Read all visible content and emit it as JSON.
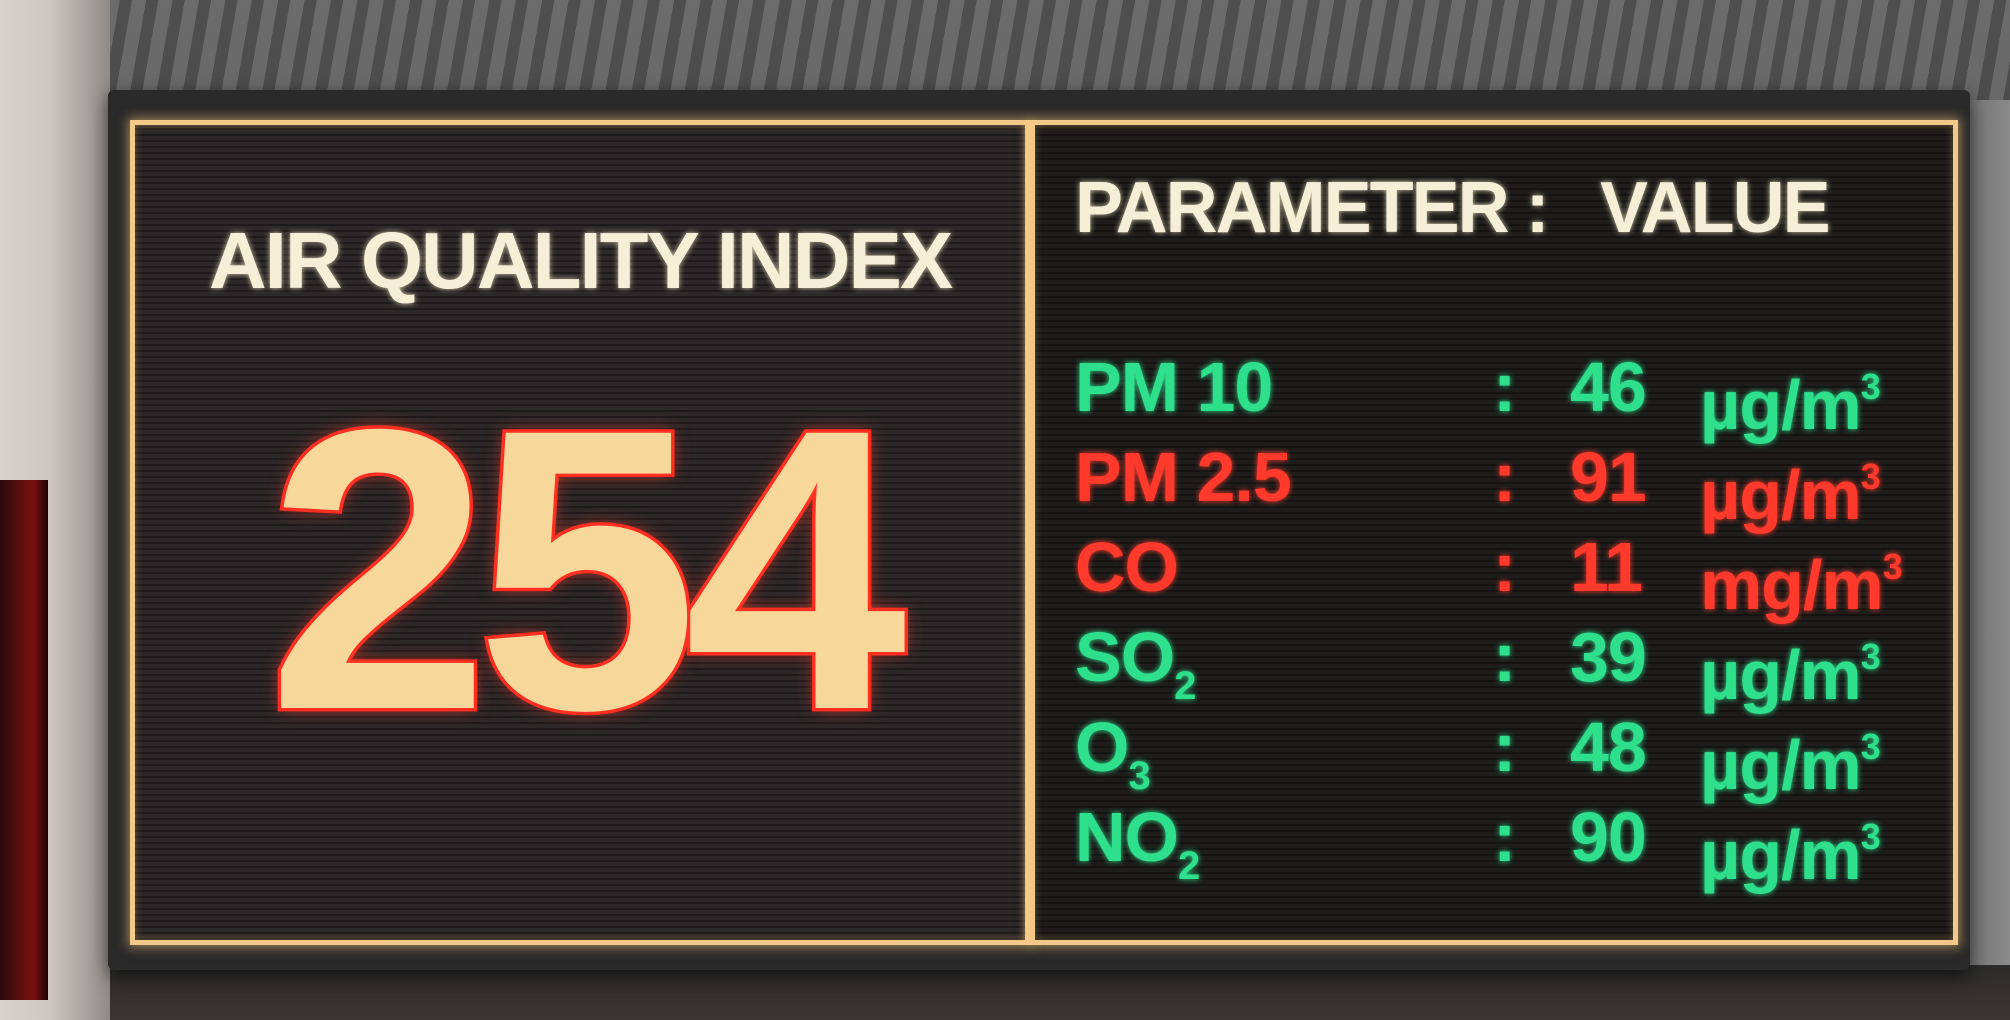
{
  "left_panel": {
    "title": "AIR QUALITY INDEX",
    "value": "254"
  },
  "right_panel": {
    "header_parameter": "PARAMETER :",
    "header_value": "VALUE",
    "rows": [
      {
        "name": "PM 10",
        "sub": "",
        "colon": ":",
        "value": "46",
        "unit": "µg/m",
        "unit_sup": "3",
        "color": "#2ee08c"
      },
      {
        "name": "PM 2.5",
        "sub": "",
        "colon": ":",
        "value": "91",
        "unit": "µg/m",
        "unit_sup": "3",
        "color": "#ff3a2c"
      },
      {
        "name": "CO",
        "sub": "",
        "colon": ":",
        "value": "11",
        "unit": "mg/m",
        "unit_sup": "3",
        "color": "#ff3a2c"
      },
      {
        "name": "SO",
        "sub": "2",
        "colon": ":",
        "value": "39",
        "unit": "µg/m",
        "unit_sup": "3",
        "color": "#2ee08c"
      },
      {
        "name": "O",
        "sub": "3",
        "colon": ":",
        "value": "48",
        "unit": "µg/m",
        "unit_sup": "3",
        "color": "#2ee08c"
      },
      {
        "name": "NO",
        "sub": "2",
        "colon": ":",
        "value": "90",
        "unit": "µg/m",
        "unit_sup": "3",
        "color": "#2ee08c"
      }
    ]
  }
}
